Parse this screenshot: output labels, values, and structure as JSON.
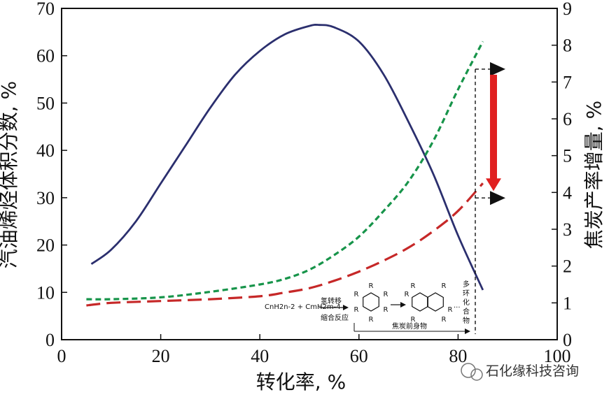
{
  "chart_data": {
    "type": "line",
    "xlabel": "转化率, %",
    "ylabel_left": "汽油烯烃体积分数, %",
    "ylabel_right": "焦炭产率增量, %",
    "xlim": [
      0,
      100
    ],
    "ylim_left": [
      0,
      70
    ],
    "ylim_right": [
      0,
      9
    ],
    "x_ticks": [
      "0",
      "20",
      "40",
      "60",
      "80",
      "100"
    ],
    "y_left_ticks": [
      "0",
      "10",
      "20",
      "30",
      "40",
      "50",
      "60",
      "70"
    ],
    "y_right_ticks": [
      "0",
      "1",
      "2",
      "3",
      "4",
      "5",
      "6",
      "7",
      "8",
      "9"
    ],
    "grid": false,
    "series": [
      {
        "axis": "left",
        "style": "solid",
        "color": "#2b2f6e",
        "x": [
          6,
          10,
          15,
          20,
          25,
          30,
          35,
          40,
          45,
          50,
          52,
          55,
          60,
          65,
          70,
          75,
          80,
          85
        ],
        "y": [
          16,
          19,
          25,
          33,
          41,
          49,
          56,
          61,
          64.5,
          66.3,
          66.5,
          66,
          63,
          56,
          46,
          35,
          22,
          10.5
        ]
      },
      {
        "axis": "right",
        "style": "dashed-short",
        "color": "#17944a",
        "x": [
          5,
          10,
          20,
          30,
          40,
          45,
          50,
          55,
          60,
          65,
          70,
          75,
          80,
          85
        ],
        "y": [
          1.1,
          1.1,
          1.15,
          1.3,
          1.5,
          1.65,
          1.9,
          2.3,
          2.8,
          3.5,
          4.3,
          5.4,
          6.8,
          8.1
        ]
      },
      {
        "axis": "right",
        "style": "dashed-long",
        "color": "#c62828",
        "x": [
          5,
          10,
          20,
          30,
          40,
          45,
          50,
          55,
          60,
          65,
          70,
          75,
          80,
          85
        ],
        "y": [
          0.93,
          1.0,
          1.05,
          1.1,
          1.18,
          1.28,
          1.4,
          1.6,
          1.85,
          2.15,
          2.5,
          2.95,
          3.5,
          4.25
        ]
      }
    ],
    "annotations": {
      "upper_level": 7.35,
      "lower_level": 3.85,
      "arrow_color": "#e02020",
      "inset_reaction_left": "CnH2n-2 + CmH2m-4",
      "inset_label_1": "氢转移",
      "inset_label_2": "缩合反应",
      "inset_label_3": "焦炭前身物",
      "inset_label_4": "多环化合物",
      "substituent": "R"
    }
  },
  "watermark": "石化缘科技咨询"
}
